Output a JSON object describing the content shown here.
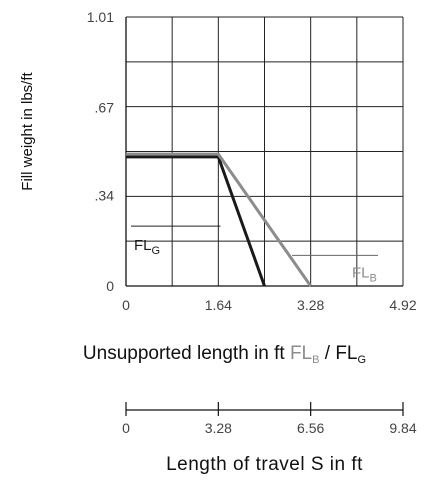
{
  "chart_data": {
    "type": "line",
    "ylabel": "Fill weight in lbs/ft",
    "xlabel": "Unsupported length in ft ",
    "xlabel_series_b": {
      "base": "FL",
      "sub": "B"
    },
    "xlabel_separator": " / ",
    "xlabel_series_g": {
      "base": "FL",
      "sub": "G"
    },
    "xlim": [
      0,
      4.92
    ],
    "ylim": [
      0,
      1.01
    ],
    "x_ticks": [
      0,
      1.64,
      3.28,
      4.92
    ],
    "x_tick_labels": [
      "0",
      "1.64",
      "3.28",
      "4.92"
    ],
    "y_ticks": [
      0,
      0.34,
      0.67,
      1.01
    ],
    "y_tick_labels": [
      "0",
      ".34",
      ".67",
      "1.01"
    ],
    "grid": true,
    "series": [
      {
        "label_base": "FL",
        "label_sub": "G",
        "color": "#1a1a1a",
        "x": [
          0,
          1.64,
          2.46
        ],
        "y": [
          0.485,
          0.485,
          0
        ]
      },
      {
        "label_base": "FL",
        "label_sub": "B",
        "color": "#8c8c8c",
        "x": [
          0,
          1.64,
          3.28
        ],
        "y": [
          0.495,
          0.495,
          0
        ]
      }
    ],
    "secondary_axis": {
      "xlabel": "Length of travel S in ft",
      "ticks": [
        0,
        3.28,
        6.56,
        9.84
      ],
      "tick_labels": [
        "0",
        "3.28",
        "6.56",
        "9.84"
      ],
      "xlim": [
        0,
        9.84
      ]
    }
  }
}
